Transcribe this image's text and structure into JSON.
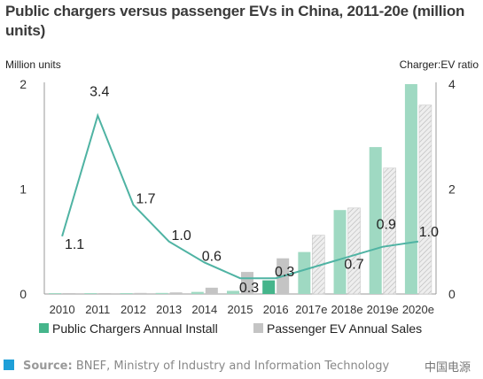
{
  "title": "Public chargers versus passenger EVs in China, 2011-20e (million units)",
  "source_label": "Source:",
  "source_text": "BNEF, Ministry of Industry and Information Technology",
  "watermark": "中国电源",
  "colors": {
    "chargers_bar": "#9fd9c2",
    "chargers_bar_2016": "#45b58b",
    "ev_bar": "#c4c4c4",
    "ev_bar_hatched": "#e2e2e2",
    "ratio_line": "#4fb3a3",
    "source_square": "#1e9fd8"
  },
  "chart_data": {
    "type": "bar",
    "categories": [
      "2010",
      "2011",
      "2012",
      "2013",
      "2014",
      "2015",
      "2016",
      "2017e",
      "2018e",
      "2019e",
      "2020e"
    ],
    "series": [
      {
        "name": "Public Chargers Annual Install",
        "type": "bar",
        "axis": "left",
        "values": [
          0.002,
          0.005,
          0.008,
          0.01,
          0.02,
          0.03,
          0.13,
          0.4,
          0.8,
          1.4,
          2.0
        ]
      },
      {
        "name": "Passenger EV Annual Sales",
        "type": "bar",
        "axis": "left",
        "values": [
          0.002,
          0.005,
          0.01,
          0.015,
          0.06,
          0.21,
          0.34,
          0.56,
          0.82,
          1.2,
          1.8
        ]
      },
      {
        "name": "Charger:EV ratio",
        "type": "line",
        "axis": "right",
        "x": [
          "2010",
          "2011",
          "2012",
          "2013",
          "2014",
          "2015",
          "2016",
          "2019e",
          "2020e"
        ],
        "values": [
          1.1,
          3.4,
          1.7,
          1.0,
          0.6,
          0.3,
          0.3,
          0.9,
          1.0
        ],
        "labels": [
          "1.1",
          "3.4",
          "1.7",
          "1.0",
          "0.6",
          "0.3",
          "0.3",
          "0.9",
          "1.0"
        ]
      }
    ],
    "extra_label": "0.7",
    "projected_categories": [
      "2017e",
      "2018e",
      "2019e",
      "2020e"
    ],
    "y_left": {
      "label": "Million units",
      "ylim": [
        0,
        2
      ],
      "ticks": [
        "0",
        "1",
        "2"
      ]
    },
    "y_right": {
      "label": "Charger:EV ratio",
      "ylim": [
        0,
        4
      ],
      "ticks": [
        "0",
        "2",
        "4"
      ]
    },
    "legend": {
      "position": "bottom",
      "labels": [
        "Public Chargers Annual Install",
        "Passenger EV Annual Sales"
      ]
    },
    "grid": false
  }
}
